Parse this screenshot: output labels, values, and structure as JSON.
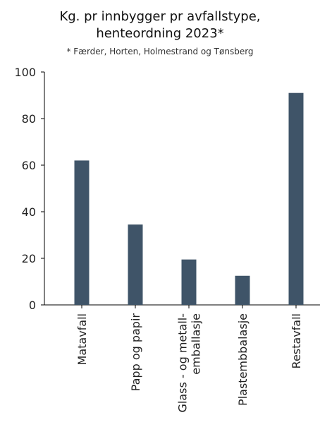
{
  "chart_data": {
    "type": "bar",
    "title_lines": [
      "Kg. pr innbygger pr avfallstype,",
      "henteordning 2023*"
    ],
    "subtitle": "* Færder, Horten, Holmestrand og Tønsberg",
    "categories": [
      [
        "Matavfall"
      ],
      [
        "Papp og papir"
      ],
      [
        "Glass - og metall-",
        "emballasje"
      ],
      [
        "Plastembbalasje"
      ],
      [
        "Restavfall"
      ]
    ],
    "values": [
      62,
      34.5,
      19.5,
      12.5,
      91
    ],
    "yticks": [
      0,
      20,
      40,
      60,
      80,
      100
    ],
    "ylim": [
      0,
      100
    ],
    "bar_color": "#3f5468",
    "axis_color": "#000000",
    "grid": false
  }
}
